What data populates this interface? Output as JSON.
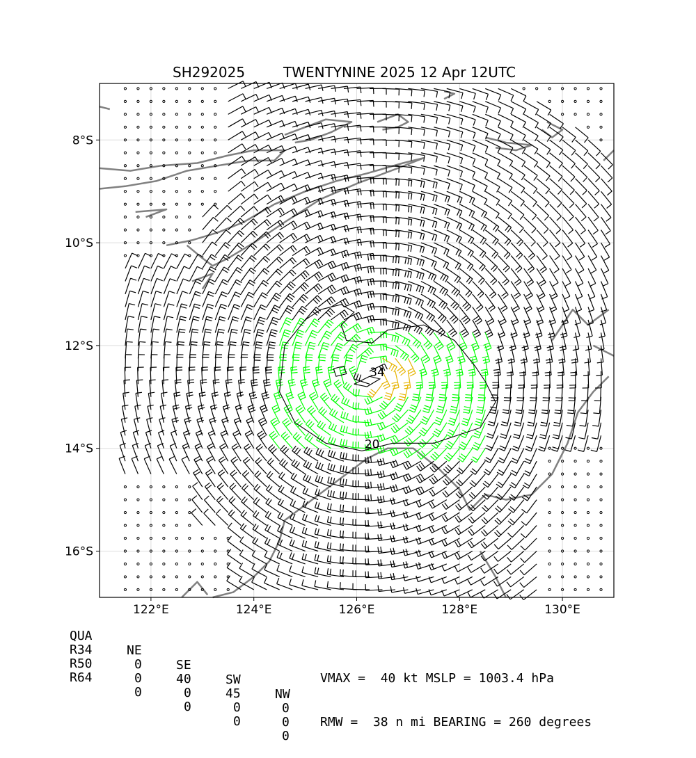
{
  "title": {
    "storm_id": "SH292025",
    "description": "TWENTYNINE 2025 12 Apr 12UTC"
  },
  "map": {
    "lon_range": [
      121,
      131
    ],
    "lat_range": [
      -16.9,
      -6.9
    ],
    "lon_ticks": [
      {
        "v": 122,
        "label": "122°E"
      },
      {
        "v": 124,
        "label": "124°E"
      },
      {
        "v": 126,
        "label": "126°E"
      },
      {
        "v": 128,
        "label": "128°E"
      },
      {
        "v": 130,
        "label": "130°E"
      }
    ],
    "lat_ticks": [
      {
        "v": -8,
        "label": "8°S"
      },
      {
        "v": -10,
        "label": "10°S"
      },
      {
        "v": -12,
        "label": "12°S"
      },
      {
        "v": -14,
        "label": "14°S"
      },
      {
        "v": -16,
        "label": "16°S"
      }
    ],
    "storm_center": {
      "lon": 126.3,
      "lat": -12.6
    },
    "contour_labels": [
      {
        "text": "34",
        "lon": 126.4,
        "lat": -12.6
      },
      {
        "text": "20",
        "lon": 126.3,
        "lat": -14.0
      }
    ],
    "grid": true,
    "colors": {
      "barb_default": "#000000",
      "barb_34kt": "#00ff00",
      "barb_50kt": "#e6b400",
      "coastline": "#808080",
      "contour": "#000000"
    }
  },
  "table": {
    "headers": [
      "QUA",
      "NE",
      "SE",
      "SW",
      "NW"
    ],
    "rows": [
      {
        "label": "R34",
        "values": [
          "0",
          "40",
          "45",
          "0"
        ]
      },
      {
        "label": "R50",
        "values": [
          "0",
          "0",
          "0",
          "0"
        ]
      },
      {
        "label": "R64",
        "values": [
          "0",
          "0",
          "0",
          "0"
        ]
      }
    ]
  },
  "stats": {
    "line1": "VMAX =  40 kt MSLP = 1003.4 hPa",
    "line2": "RMW =  38 n mi BEARING = 260 degrees"
  }
}
